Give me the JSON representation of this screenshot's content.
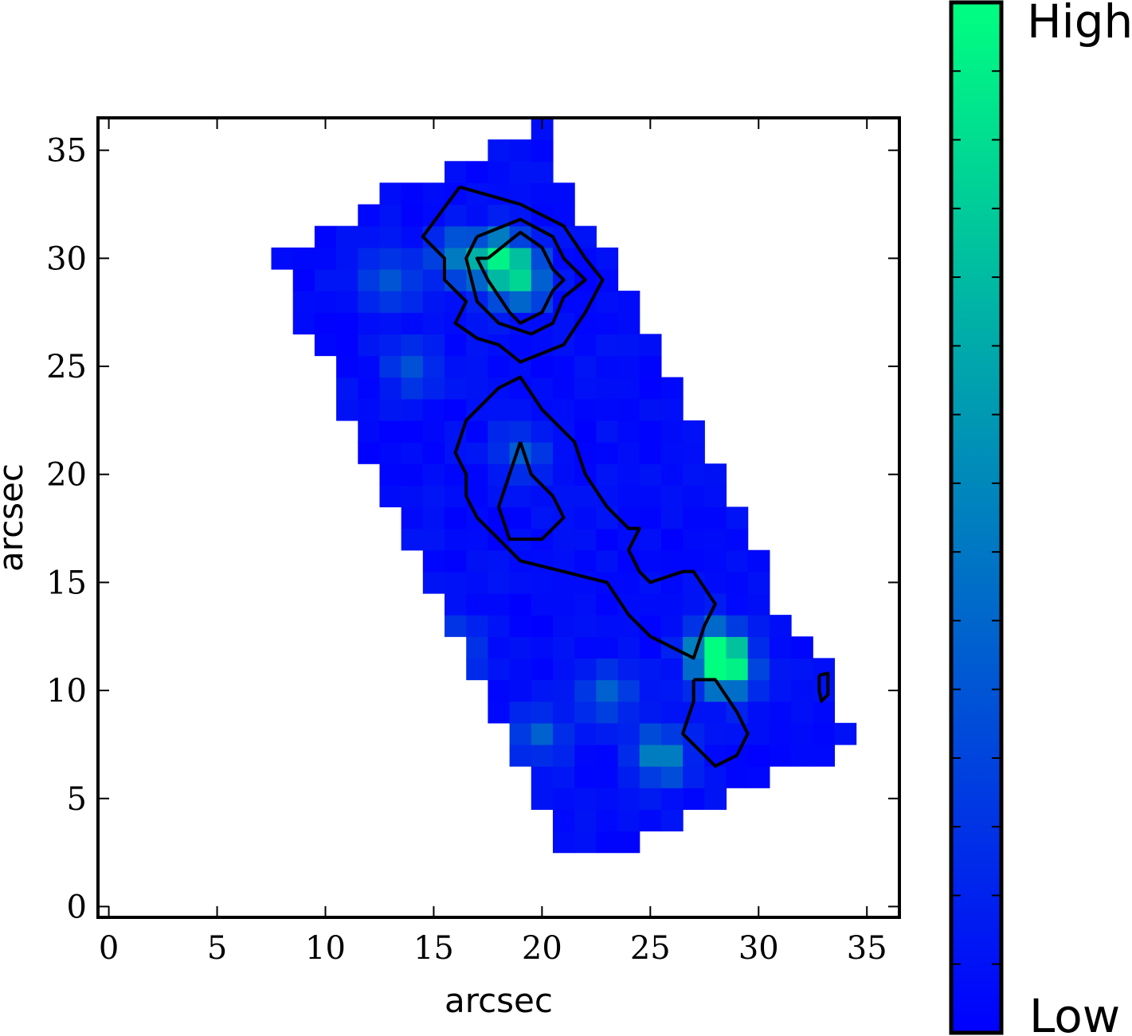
{
  "chart_data": {
    "type": "heatmap",
    "title": "",
    "xlabel": "arcsec",
    "ylabel": "arcsec",
    "xlim": [
      -0.5,
      36.5
    ],
    "ylim": [
      -0.5,
      36.5
    ],
    "xticks": [
      0,
      5,
      10,
      15,
      20,
      25,
      30,
      35
    ],
    "yticks": [
      0,
      5,
      10,
      15,
      20,
      25,
      30,
      35
    ],
    "pixel_size_arcsec": 1,
    "colormap": "winter",
    "colors": {
      "low": "#0000ff",
      "high": "#00ff80"
    },
    "colorbar": {
      "high_label": "High",
      "low_label": "Low"
    },
    "mask_outline": [
      [
        21.5,
        1.5
      ],
      [
        21.5,
        2.5
      ],
      [
        24.5,
        2.5
      ],
      [
        24.5,
        3.5
      ],
      [
        26.5,
        3.5
      ],
      [
        26.5,
        4.5
      ],
      [
        28.5,
        4.5
      ],
      [
        28.5,
        5.5
      ],
      [
        30.5,
        5.5
      ],
      [
        30.5,
        6.5
      ],
      [
        33.5,
        6.5
      ],
      [
        33.5,
        7.5
      ],
      [
        34.5,
        7.5
      ],
      [
        34.5,
        8.5
      ],
      [
        33.5,
        8.5
      ],
      [
        33.5,
        11.5
      ],
      [
        32.5,
        11.5
      ],
      [
        32.5,
        12.5
      ],
      [
        31.5,
        12.5
      ],
      [
        31.5,
        13.5
      ],
      [
        30.5,
        13.5
      ],
      [
        30.5,
        16.5
      ],
      [
        29.5,
        16.5
      ],
      [
        29.5,
        18.5
      ],
      [
        28.5,
        18.5
      ],
      [
        28.5,
        20.5
      ],
      [
        27.5,
        20.5
      ],
      [
        27.5,
        22.5
      ],
      [
        26.5,
        22.5
      ],
      [
        26.5,
        24.5
      ],
      [
        25.5,
        24.5
      ],
      [
        25.5,
        26.5
      ],
      [
        24.5,
        26.5
      ],
      [
        24.5,
        28.5
      ],
      [
        23.5,
        28.5
      ],
      [
        23.5,
        30.5
      ],
      [
        22.5,
        30.5
      ],
      [
        22.5,
        31.5
      ],
      [
        21.5,
        31.5
      ],
      [
        21.5,
        33.5
      ],
      [
        20.5,
        33.5
      ],
      [
        20.5,
        34.5
      ],
      [
        20.5,
        36.5
      ],
      [
        19.5,
        36.5
      ],
      [
        19.5,
        35.5
      ],
      [
        17.5,
        35.5
      ],
      [
        17.5,
        34.5
      ],
      [
        15.5,
        34.5
      ],
      [
        15.5,
        33.5
      ],
      [
        12.5,
        33.5
      ],
      [
        12.5,
        32.5
      ],
      [
        11.5,
        32.5
      ],
      [
        11.5,
        31.5
      ],
      [
        9.5,
        31.5
      ],
      [
        9.5,
        30.5
      ],
      [
        7.5,
        30.5
      ],
      [
        7.5,
        29.5
      ],
      [
        8.5,
        29.5
      ],
      [
        8.5,
        26.5
      ],
      [
        9.5,
        26.5
      ],
      [
        9.5,
        25.5
      ],
      [
        10.5,
        25.5
      ],
      [
        10.5,
        22.5
      ],
      [
        11.5,
        22.5
      ],
      [
        11.5,
        20.5
      ],
      [
        12.5,
        20.5
      ],
      [
        12.5,
        18.5
      ],
      [
        13.5,
        18.5
      ],
      [
        13.5,
        16.5
      ],
      [
        14.5,
        16.5
      ],
      [
        14.5,
        14.5
      ],
      [
        15.5,
        14.5
      ],
      [
        15.5,
        12.5
      ],
      [
        16.5,
        12.5
      ],
      [
        16.5,
        10.5
      ],
      [
        17.5,
        10.5
      ],
      [
        17.5,
        8.5
      ],
      [
        18.5,
        8.5
      ],
      [
        18.5,
        6.5
      ],
      [
        19.5,
        6.5
      ],
      [
        19.5,
        4.5
      ],
      [
        20.5,
        4.5
      ],
      [
        20.5,
        2.5
      ],
      [
        21.5,
        2.5
      ],
      [
        21.5,
        1.5
      ]
    ],
    "intensity_peaks": [
      {
        "x": 18,
        "y": 30,
        "value": 0.7
      },
      {
        "x": 19,
        "y": 29,
        "value": 0.6
      },
      {
        "x": 16,
        "y": 30,
        "value": 0.4
      },
      {
        "x": 28.5,
        "y": 11,
        "value": 0.85
      },
      {
        "x": 28,
        "y": 12,
        "value": 0.6
      },
      {
        "x": 25.5,
        "y": 7,
        "value": 0.5
      },
      {
        "x": 23,
        "y": 10,
        "value": 0.35
      },
      {
        "x": 16,
        "y": 12,
        "value": 0.35
      },
      {
        "x": 19,
        "y": 21,
        "value": 0.3
      },
      {
        "x": 13,
        "y": 29,
        "value": 0.3
      },
      {
        "x": 14,
        "y": 25,
        "value": 0.25
      },
      {
        "x": 20,
        "y": 8,
        "value": 0.3
      }
    ],
    "contours": [
      [
        [
          16.2,
          33.3
        ],
        [
          19.0,
          32.5
        ],
        [
          21.0,
          31.5
        ],
        [
          22.0,
          30.0
        ],
        [
          22.8,
          29.0
        ],
        [
          22.0,
          27.5
        ],
        [
          21.0,
          26.0
        ],
        [
          19.0,
          25.2
        ],
        [
          18.0,
          26.0
        ],
        [
          17.0,
          26.3
        ],
        [
          16.0,
          27.0
        ],
        [
          16.5,
          28.0
        ],
        [
          15.5,
          29.0
        ],
        [
          15.5,
          30.0
        ],
        [
          14.5,
          31.0
        ],
        [
          16.2,
          33.3
        ]
      ],
      [
        [
          17.0,
          31.0
        ],
        [
          19.0,
          31.8
        ],
        [
          20.5,
          31.0
        ],
        [
          21.0,
          30.0
        ],
        [
          22.0,
          29.0
        ],
        [
          21.0,
          28.2
        ],
        [
          20.5,
          27.0
        ],
        [
          19.5,
          26.5
        ],
        [
          18.0,
          27.0
        ],
        [
          17.0,
          28.0
        ],
        [
          16.5,
          30.0
        ],
        [
          17.0,
          31.0
        ]
      ],
      [
        [
          17.5,
          30.0
        ],
        [
          19.0,
          31.2
        ],
        [
          20.0,
          30.5
        ],
        [
          20.5,
          29.5
        ],
        [
          21.0,
          29.0
        ],
        [
          20.5,
          28.5
        ],
        [
          20.0,
          27.5
        ],
        [
          19.0,
          27.0
        ],
        [
          18.5,
          27.5
        ],
        [
          17.5,
          29.0
        ],
        [
          17.0,
          30.0
        ],
        [
          17.5,
          30.0
        ]
      ],
      [
        [
          17.0,
          23.0
        ],
        [
          18.0,
          24.0
        ],
        [
          19.0,
          24.5
        ],
        [
          20.0,
          23.0
        ],
        [
          21.0,
          22.0
        ],
        [
          21.5,
          21.5
        ],
        [
          22.0,
          20.0
        ],
        [
          23.0,
          18.5
        ],
        [
          24.0,
          17.5
        ],
        [
          24.5,
          17.5
        ],
        [
          24.0,
          16.5
        ],
        [
          24.5,
          15.5
        ],
        [
          25.0,
          15.0
        ],
        [
          26.5,
          15.5
        ],
        [
          27.0,
          15.5
        ],
        [
          28.0,
          14.0
        ],
        [
          27.5,
          13.0
        ],
        [
          27.0,
          11.5
        ],
        [
          26.0,
          12.0
        ],
        [
          25.0,
          12.5
        ],
        [
          24.0,
          13.5
        ],
        [
          23.0,
          15.0
        ],
        [
          21.0,
          15.5
        ],
        [
          19.0,
          16.0
        ],
        [
          18.0,
          17.0
        ],
        [
          17.0,
          18.0
        ],
        [
          16.5,
          19.0
        ],
        [
          16.5,
          20.0
        ],
        [
          16.0,
          21.0
        ],
        [
          16.5,
          22.5
        ],
        [
          17.0,
          23.0
        ]
      ],
      [
        [
          19.0,
          21.5
        ],
        [
          19.5,
          20.0
        ],
        [
          20.5,
          19.0
        ],
        [
          21.0,
          18.0
        ],
        [
          20.0,
          17.0
        ],
        [
          18.5,
          17.0
        ],
        [
          18.0,
          18.5
        ],
        [
          18.5,
          20.0
        ],
        [
          19.0,
          21.5
        ]
      ],
      [
        [
          27.0,
          10.5
        ],
        [
          28.0,
          10.5
        ],
        [
          29.0,
          9.0
        ],
        [
          29.5,
          8.0
        ],
        [
          29.0,
          7.0
        ],
        [
          28.0,
          6.5
        ],
        [
          27.5,
          7.0
        ],
        [
          26.5,
          8.0
        ],
        [
          27.0,
          9.5
        ],
        [
          27.0,
          10.5
        ]
      ],
      [
        [
          32.8,
          10.7
        ],
        [
          33.2,
          10.8
        ],
        [
          33.2,
          9.8
        ],
        [
          32.9,
          9.5
        ],
        [
          32.8,
          10.0
        ],
        [
          32.8,
          10.7
        ]
      ]
    ]
  }
}
